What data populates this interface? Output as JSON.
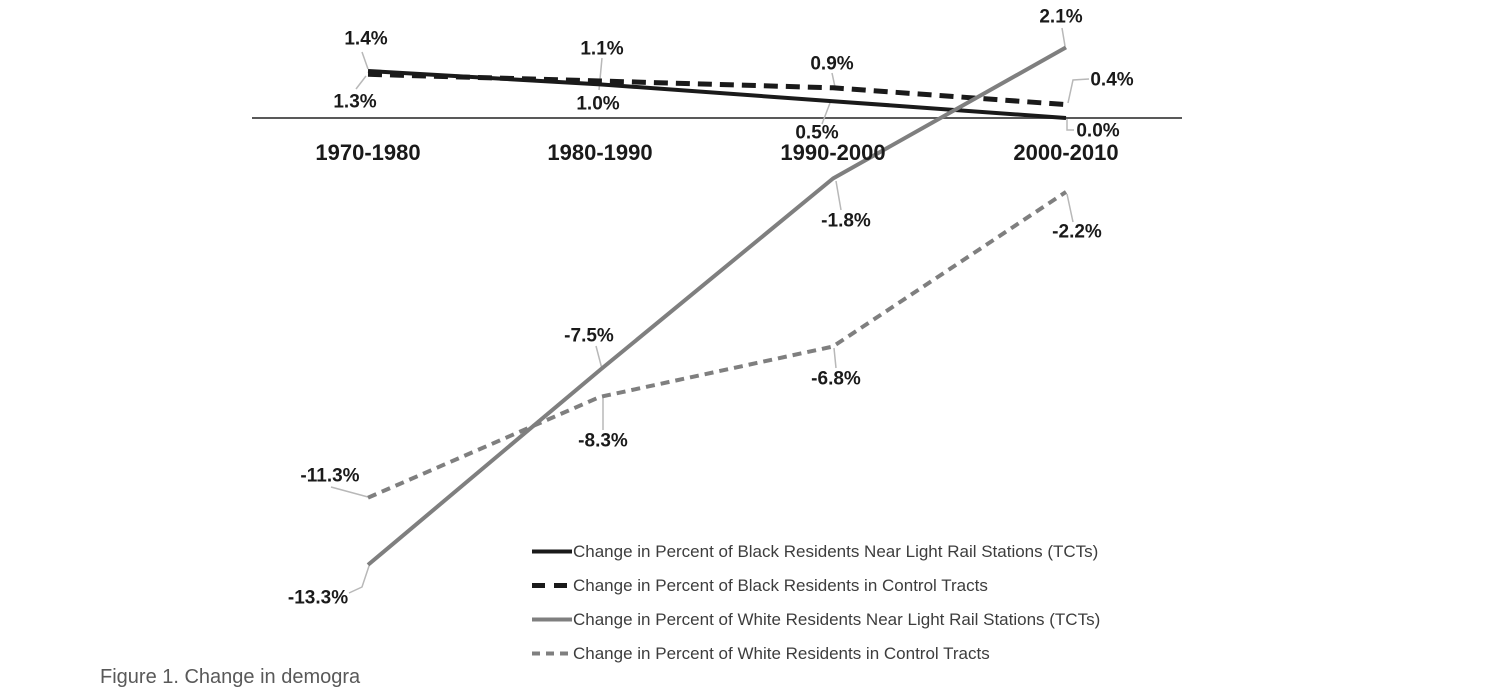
{
  "figure": {
    "caption_partial": "Figure 1.  Change in demogra"
  },
  "colors": {
    "black_line": "#1a1a1a",
    "gray_line": "#7f7f7f",
    "axis": "#595959",
    "leader": "#b8b8b8",
    "label_text": "#1a1a1a",
    "legend_text": "#3d3d3d",
    "background": "#ffffff"
  },
  "chart_data": {
    "type": "line",
    "title": "",
    "xlabel": "",
    "ylabel": "",
    "categories": [
      "1970-1980",
      "1980-1990",
      "1990-2000",
      "2000-2010"
    ],
    "series": [
      {
        "name": "Change in Percent of Black Residents Near Light Rail Stations (TCTs)",
        "values": [
          1.4,
          1.0,
          0.5,
          0.0
        ],
        "point_labels": [
          "1.4%",
          "1.0%",
          "0.5%",
          "0.0%"
        ],
        "color_key": "black",
        "style": "solid"
      },
      {
        "name": "Change in Percent of Black Residents in Control Tracts",
        "values": [
          1.3,
          1.1,
          0.9,
          0.4
        ],
        "point_labels": [
          "1.3%",
          "1.1%",
          "0.9%",
          "0.4%"
        ],
        "color_key": "black",
        "style": "long-dash"
      },
      {
        "name": "Change in Percent of White Residents Near Light Rail Stations (TCTs)",
        "values": [
          -13.3,
          -7.5,
          -1.8,
          2.1
        ],
        "point_labels": [
          "-13.3%",
          "-7.5%",
          "-1.8%",
          "2.1%"
        ],
        "color_key": "gray",
        "style": "solid"
      },
      {
        "name": "Change in Percent of White Residents in Control Tracts",
        "values": [
          -11.3,
          -8.3,
          -6.8,
          -2.2
        ],
        "point_labels": [
          "-11.3%",
          "-8.3%",
          "-6.8%",
          "-2.2%"
        ],
        "color_key": "gray",
        "style": "short-dash"
      }
    ],
    "ylim": [
      -15,
      3
    ],
    "zero_line": true,
    "y_axis_visible": false,
    "grid": false,
    "legend_position": "bottom-center",
    "data_labels_visible": true
  }
}
